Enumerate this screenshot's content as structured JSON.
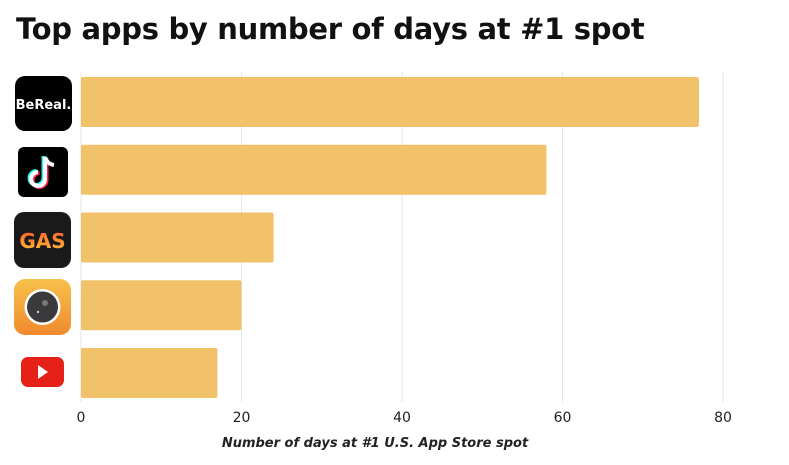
{
  "chart_data": {
    "type": "bar",
    "orientation": "horizontal",
    "title": "Top apps by number of days at #1 spot",
    "xlabel": "Number of days at #1 U.S. App Store spot",
    "ylabel": "",
    "categories": [
      "BeReal",
      "TikTok",
      "Gas",
      "Camera app",
      "YouTube"
    ],
    "category_display": "app icons",
    "values": [
      77,
      58,
      24,
      20,
      17
    ],
    "xlim": [
      0,
      80
    ],
    "xticks": [
      "0",
      "20",
      "40",
      "60",
      "80"
    ],
    "grid": "vertical",
    "bar_color": "#F2C26B",
    "logo_text": {
      "bereal": "BeReal.",
      "gas": "GAS"
    }
  }
}
